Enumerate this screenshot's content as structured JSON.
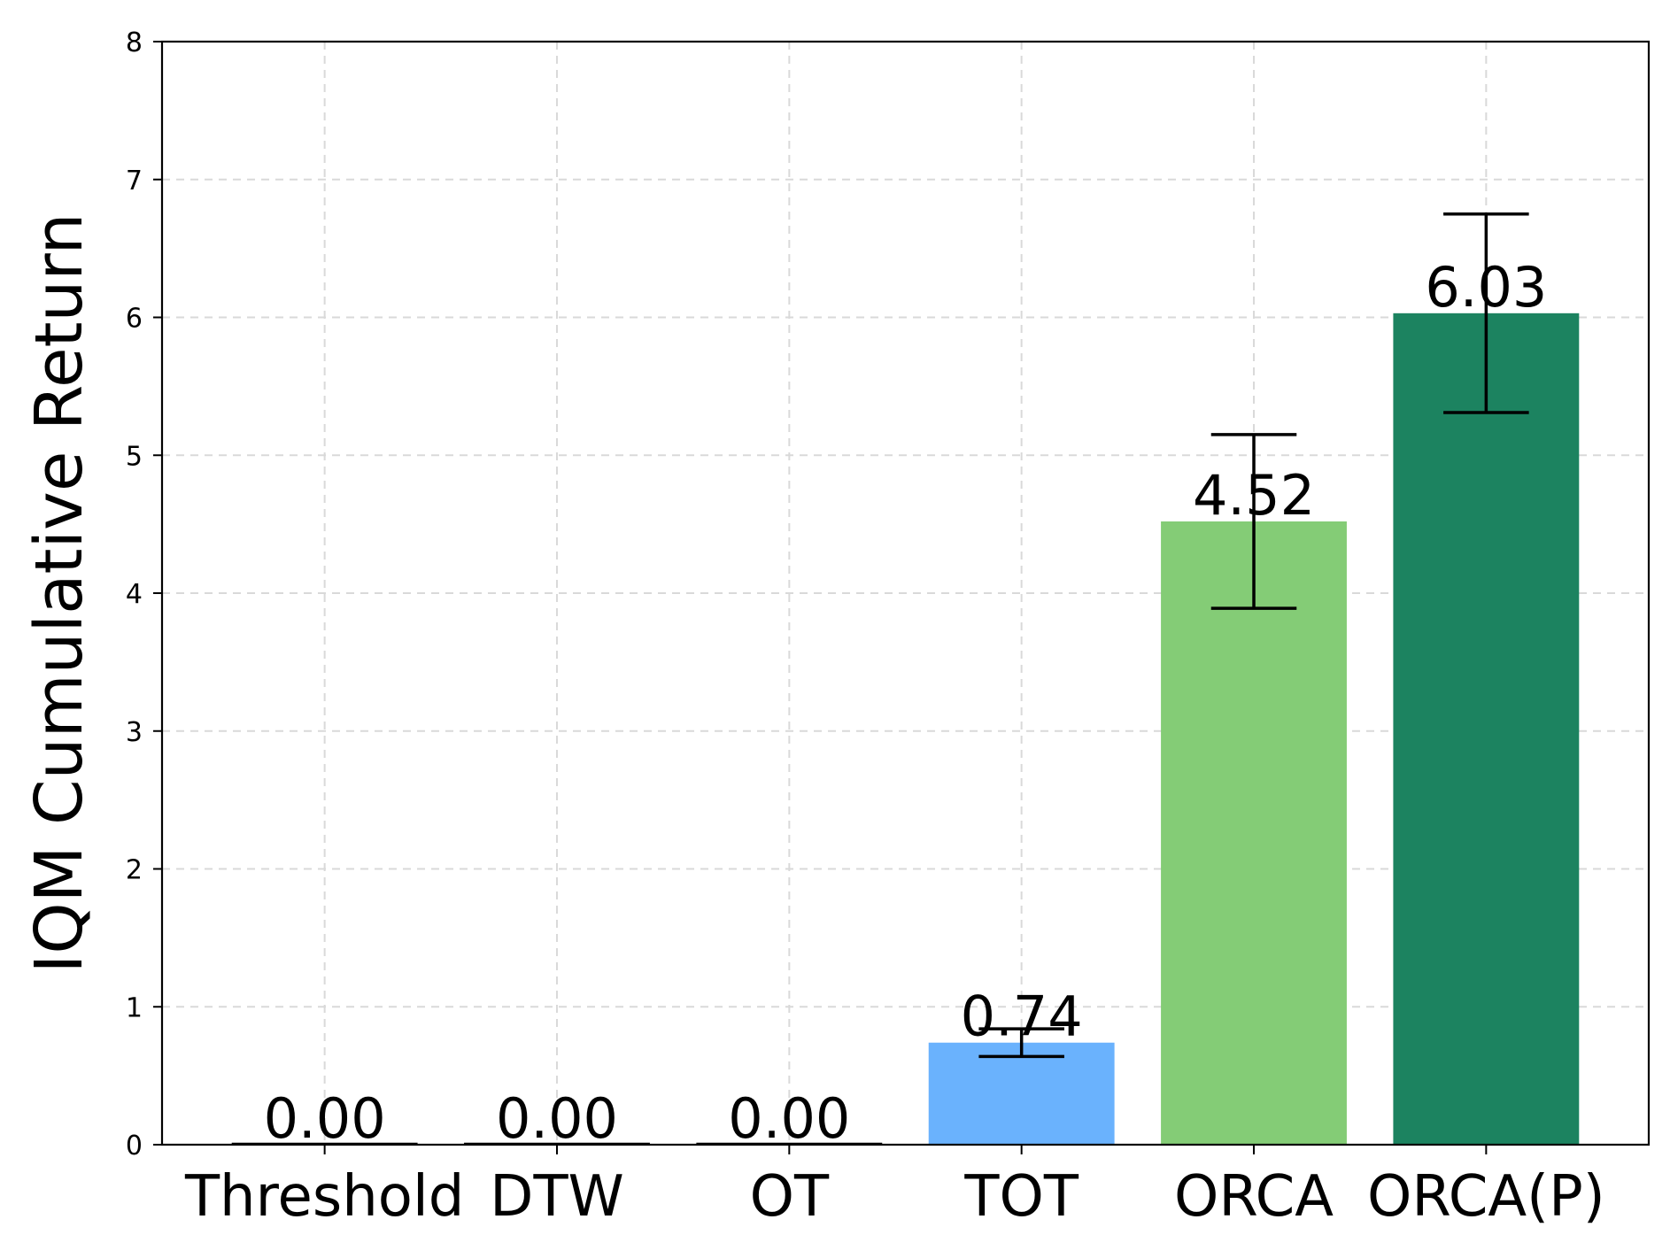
{
  "chart_data": {
    "type": "bar",
    "title": "",
    "xlabel": "",
    "ylabel": "IQM Cumulative Return",
    "categories": [
      "Threshold",
      "DTW",
      "OT",
      "TOT",
      "ORCA",
      "ORCA(P)"
    ],
    "values": [
      0.0,
      0.0,
      0.0,
      0.74,
      4.52,
      6.03
    ],
    "value_labels": [
      "0.00",
      "0.00",
      "0.00",
      "0.74",
      "4.52",
      "6.03"
    ],
    "error_bars": [
      {
        "low": 0.0,
        "high": 0.0
      },
      {
        "low": 0.0,
        "high": 0.0
      },
      {
        "low": 0.0,
        "high": 0.0
      },
      {
        "low": 0.64,
        "high": 0.84
      },
      {
        "low": 3.89,
        "high": 5.15
      },
      {
        "low": 5.31,
        "high": 6.75
      }
    ],
    "colors": [
      "#6ab2fd",
      "#6ab2fd",
      "#6ab2fd",
      "#6ab2fd",
      "#84cc76",
      "#1c8360"
    ],
    "ylim": [
      0,
      8
    ],
    "yticks": [
      "0",
      "1",
      "2",
      "3",
      "4",
      "5",
      "6",
      "7",
      "8"
    ],
    "grid": true,
    "legend": "none"
  }
}
